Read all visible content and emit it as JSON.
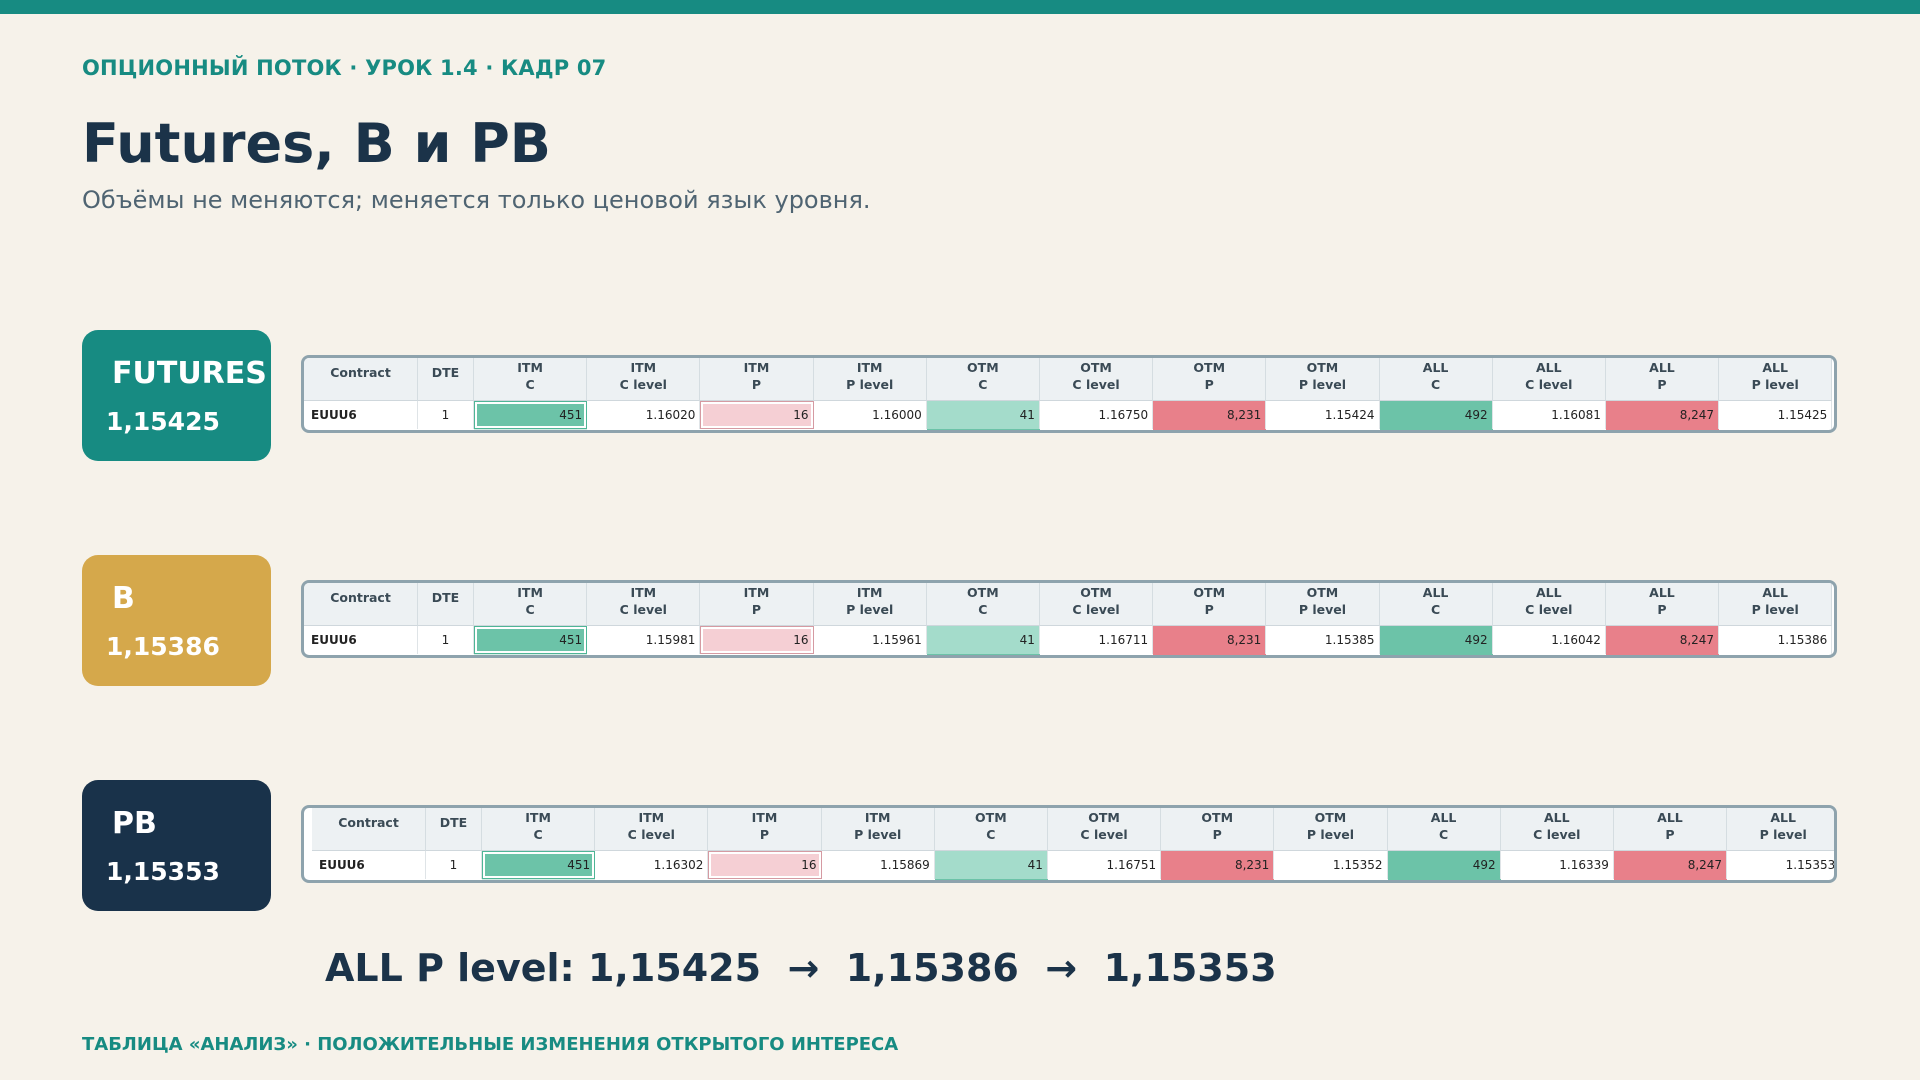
{
  "kicker": "ОПЦИОННЫЙ ПОТОК · УРОК 1.4 · КАДР 07",
  "title": "Futures, B и PB",
  "subtitle": "Объёмы не меняются; меняется только ценовой язык уровня.",
  "columns": [
    {
      "top": "",
      "bottom": "Contract"
    },
    {
      "top": "",
      "bottom": "DTE"
    },
    {
      "top": "ITM",
      "bottom": "C"
    },
    {
      "top": "ITM",
      "bottom": "C level"
    },
    {
      "top": "ITM",
      "bottom": "P"
    },
    {
      "top": "ITM",
      "bottom": "P level"
    },
    {
      "top": "OTM",
      "bottom": "C"
    },
    {
      "top": "OTM",
      "bottom": "C level"
    },
    {
      "top": "OTM",
      "bottom": "P"
    },
    {
      "top": "OTM",
      "bottom": "P level"
    },
    {
      "top": "ALL",
      "bottom": "C"
    },
    {
      "top": "ALL",
      "bottom": "C level"
    },
    {
      "top": "ALL",
      "bottom": "P"
    },
    {
      "top": "ALL",
      "bottom": "P level"
    }
  ],
  "cell_colors": [
    "",
    "",
    "#6cc3a8",
    "",
    "#f5cfd4",
    "",
    "#a4dccb",
    "",
    "#e8808a",
    "",
    "#6cc3a8",
    "",
    "#e8808a",
    ""
  ],
  "strip_colors": [
    "",
    "",
    "#d3eee5",
    "",
    "",
    "",
    "#6cc3a8",
    "",
    "#e8808a",
    "",
    "#6cc3a8",
    "",
    "#e8808a",
    ""
  ],
  "boxed": [
    "",
    "",
    "g",
    "",
    "p",
    "",
    "",
    "",
    "",
    "",
    "",
    "",
    "",
    ""
  ],
  "panels": [
    {
      "label": "FUTURES",
      "value": "1,15425",
      "color": "#178b82",
      "row": [
        "EUUU6",
        "1",
        "451",
        "1.16020",
        "16",
        "1.16000",
        "41",
        "1.16750",
        "8,231",
        "1.15424",
        "492",
        "1.16081",
        "8,247",
        "1.15425"
      ]
    },
    {
      "label": "B",
      "value": "1,15386",
      "color": "#d5a84b",
      "row": [
        "EUUU6",
        "1",
        "451",
        "1.15981",
        "16",
        "1.15961",
        "41",
        "1.16711",
        "8,231",
        "1.15385",
        "492",
        "1.16042",
        "8,247",
        "1.15386"
      ]
    },
    {
      "label": "PB",
      "value": "1,15353",
      "color": "#19324a",
      "row": [
        "EUUU6",
        "1",
        "451",
        "1.16302",
        "16",
        "1.15869",
        "41",
        "1.16751",
        "8,231",
        "1.15352",
        "492",
        "1.16339",
        "8,247",
        "1.15353"
      ]
    }
  ],
  "summary": "ALL P level: 1,15425  →  1,15386  →  1,15353",
  "footer": "ТАБЛИЦА «АНАЛИЗ» · ПОЛОЖИТЕЛЬНЫЕ ИЗМЕНЕНИЯ ОТКРЫТОГО ИНТЕРЕСА"
}
